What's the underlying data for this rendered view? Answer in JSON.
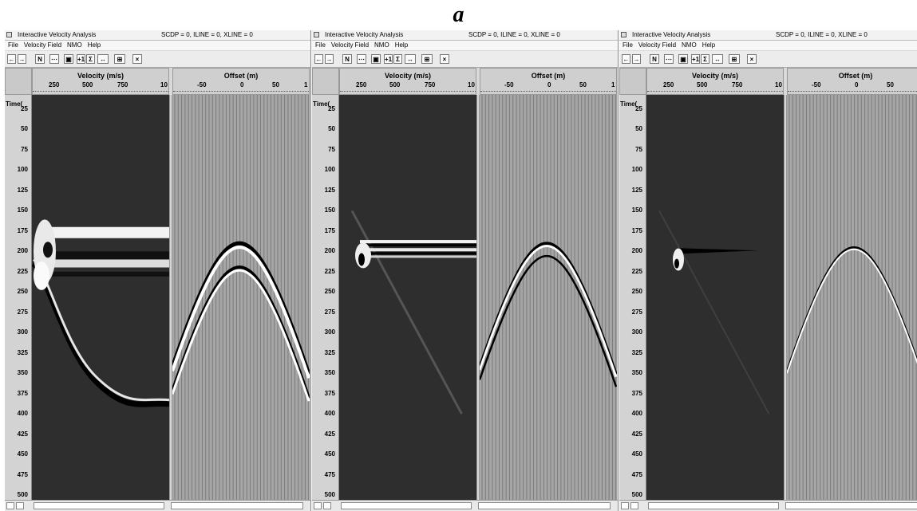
{
  "figure_label": "a",
  "panels": [
    {
      "window_title": "Interactive Velocity Analysis",
      "window_info": "SCDP = 0,  ILINE = 0,  XLINE = 0",
      "menus": [
        "File",
        "Velocity Field",
        "NMO",
        "Help"
      ],
      "toolbar": [
        "←",
        "→",
        "N",
        "⋯",
        "▣",
        "+1",
        "Σ",
        "↔",
        "⊞",
        "×"
      ],
      "velocity_header": "Velocity (m/s)",
      "velocity_ticks": [
        "250",
        "500",
        "750",
        "10"
      ],
      "offset_header": "Offset (m)",
      "offset_ticks": [
        "-50",
        "0",
        "50",
        "1"
      ],
      "time_header": "Time(",
      "time_labels": [
        "25",
        "50",
        "75",
        "100",
        "125",
        "150",
        "175",
        "200",
        "225",
        "250",
        "275",
        "300",
        "325",
        "350",
        "375",
        "400",
        "425",
        "450",
        "475",
        "500"
      ],
      "semblance_style": "broad",
      "gather_style": "thick"
    },
    {
      "window_title": "Interactive Velocity Analysis",
      "window_info": "SCDP = 0,  ILINE = 0,  XLINE = 0",
      "menus": [
        "File",
        "Velocity Field",
        "NMO",
        "Help"
      ],
      "toolbar": [
        "←",
        "→",
        "N",
        "⋯",
        "▣",
        "+1",
        "Σ",
        "↔",
        "⊞",
        "×"
      ],
      "velocity_header": "Velocity (m/s)",
      "velocity_ticks": [
        "250",
        "500",
        "750",
        "10"
      ],
      "offset_header": "Offset (m)",
      "offset_ticks": [
        "-50",
        "0",
        "50",
        "1"
      ],
      "time_header": "Time(",
      "time_labels": [
        "25",
        "50",
        "75",
        "100",
        "125",
        "150",
        "175",
        "200",
        "225",
        "250",
        "275",
        "300",
        "325",
        "350",
        "375",
        "400",
        "425",
        "450",
        "475",
        "500"
      ],
      "semblance_style": "medium",
      "gather_style": "medium"
    },
    {
      "window_title": "Interactive Velocity Analysis",
      "window_info": "SCDP = 0,  ILINE = 0,  XLINE = 0",
      "menus": [
        "File",
        "Velocity Field",
        "NMO",
        "Help"
      ],
      "toolbar": [
        "←",
        "→",
        "N",
        "⋯",
        "▣",
        "+1",
        "Σ",
        "↔",
        "⊞",
        "×"
      ],
      "velocity_header": "Velocity (m/s)",
      "velocity_ticks": [
        "250",
        "500",
        "750",
        "10"
      ],
      "offset_header": "Offset (m)",
      "offset_ticks": [
        "-50",
        "0",
        "50"
      ],
      "time_header": "Time(",
      "time_labels": [
        "25",
        "50",
        "75",
        "100",
        "125",
        "150",
        "175",
        "200",
        "225",
        "250",
        "275",
        "300",
        "325",
        "350",
        "375",
        "400",
        "425",
        "450",
        "475",
        "500"
      ],
      "semblance_style": "narrow",
      "gather_style": "thin"
    }
  ],
  "colors": {
    "semblance_bg": "#2e2e2e",
    "gather_bg": "#a6a6a6",
    "trace_line": "#7a7a7a",
    "chrome": "#d9d9d9"
  }
}
